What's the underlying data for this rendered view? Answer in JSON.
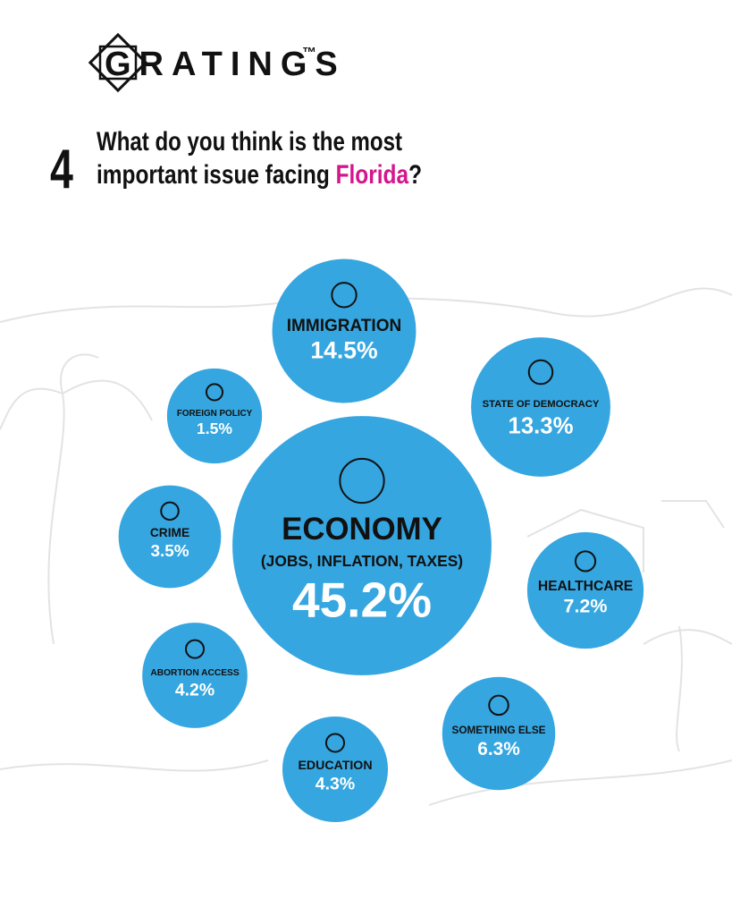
{
  "chart_data": {
    "type": "bubble",
    "brand": "GRATINGS",
    "trademark": "™",
    "question_number": "4",
    "title_parts": [
      "What do you think is the most",
      "important issue facing ",
      "Florida",
      "?"
    ],
    "categories": [
      "IMMIGRATION",
      "STATE OF DEMOCRACY",
      "FOREIGN POLICY",
      "ECONOMY",
      "CRIME",
      "HEALTHCARE",
      "ABORTION ACCESS",
      "SOMETHING ELSE",
      "EDUCATION"
    ],
    "economy_detail": "(JOBS, INFLATION, TAXES)",
    "values": [
      14.5,
      13.3,
      1.5,
      45.2,
      3.5,
      7.2,
      4.2,
      6.3,
      4.3
    ],
    "value_labels": [
      "14.5%",
      "13.3%",
      "1.5%",
      "45.2%",
      "3.5%",
      "7.2%",
      "4.2%",
      "6.3%",
      "4.3%"
    ],
    "color": "#35a6e0",
    "highlight_color": "#d4158c"
  }
}
